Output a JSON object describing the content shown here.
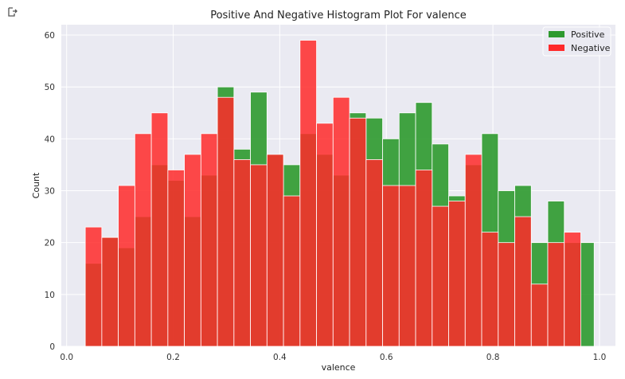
{
  "chart_data": {
    "type": "bar",
    "title": "Positive And Negative Histogram Plot For valence",
    "xlabel": "valence",
    "ylabel": "Count",
    "xlim": [
      -0.01,
      1.03
    ],
    "ylim": [
      0,
      62
    ],
    "xticks": [
      "0.0",
      "0.2",
      "0.4",
      "0.6",
      "0.8",
      "1.0"
    ],
    "yticks": [
      "0",
      "10",
      "20",
      "30",
      "40",
      "50",
      "60"
    ],
    "grid": true,
    "legend_position": "top-right",
    "series": [
      {
        "name": "Positive",
        "color": "#2e9a2e",
        "bins": [
          {
            "x0": 0.035,
            "x1": 0.066,
            "count": 16
          },
          {
            "x0": 0.066,
            "x1": 0.097,
            "count": 21
          },
          {
            "x0": 0.097,
            "x1": 0.128,
            "count": 19
          },
          {
            "x0": 0.128,
            "x1": 0.159,
            "count": 25
          },
          {
            "x0": 0.159,
            "x1": 0.19,
            "count": 35
          },
          {
            "x0": 0.19,
            "x1": 0.221,
            "count": 32
          },
          {
            "x0": 0.221,
            "x1": 0.252,
            "count": 25
          },
          {
            "x0": 0.252,
            "x1": 0.283,
            "count": 33
          },
          {
            "x0": 0.283,
            "x1": 0.314,
            "count": 50
          },
          {
            "x0": 0.314,
            "x1": 0.345,
            "count": 38
          },
          {
            "x0": 0.345,
            "x1": 0.376,
            "count": 49
          },
          {
            "x0": 0.376,
            "x1": 0.407,
            "count": 37
          },
          {
            "x0": 0.407,
            "x1": 0.438,
            "count": 35
          },
          {
            "x0": 0.438,
            "x1": 0.469,
            "count": 41
          },
          {
            "x0": 0.469,
            "x1": 0.5,
            "count": 37
          },
          {
            "x0": 0.5,
            "x1": 0.531,
            "count": 33
          },
          {
            "x0": 0.531,
            "x1": 0.562,
            "count": 45
          },
          {
            "x0": 0.562,
            "x1": 0.593,
            "count": 44
          },
          {
            "x0": 0.593,
            "x1": 0.624,
            "count": 40
          },
          {
            "x0": 0.624,
            "x1": 0.655,
            "count": 45
          },
          {
            "x0": 0.655,
            "x1": 0.686,
            "count": 47
          },
          {
            "x0": 0.686,
            "x1": 0.717,
            "count": 39
          },
          {
            "x0": 0.717,
            "x1": 0.748,
            "count": 29
          },
          {
            "x0": 0.748,
            "x1": 0.779,
            "count": 35
          },
          {
            "x0": 0.779,
            "x1": 0.81,
            "count": 41
          },
          {
            "x0": 0.81,
            "x1": 0.841,
            "count": 30
          },
          {
            "x0": 0.841,
            "x1": 0.872,
            "count": 31
          },
          {
            "x0": 0.872,
            "x1": 0.903,
            "count": 20
          },
          {
            "x0": 0.903,
            "x1": 0.934,
            "count": 28
          },
          {
            "x0": 0.934,
            "x1": 0.99,
            "count": 20
          }
        ]
      },
      {
        "name": "Negative",
        "color": "#ff2a2a",
        "bins": [
          {
            "x0": 0.035,
            "x1": 0.066,
            "count": 23
          },
          {
            "x0": 0.066,
            "x1": 0.097,
            "count": 21
          },
          {
            "x0": 0.097,
            "x1": 0.128,
            "count": 31
          },
          {
            "x0": 0.128,
            "x1": 0.159,
            "count": 41
          },
          {
            "x0": 0.159,
            "x1": 0.19,
            "count": 45
          },
          {
            "x0": 0.19,
            "x1": 0.221,
            "count": 34
          },
          {
            "x0": 0.221,
            "x1": 0.252,
            "count": 37
          },
          {
            "x0": 0.252,
            "x1": 0.283,
            "count": 41
          },
          {
            "x0": 0.283,
            "x1": 0.314,
            "count": 48
          },
          {
            "x0": 0.314,
            "x1": 0.345,
            "count": 36
          },
          {
            "x0": 0.345,
            "x1": 0.376,
            "count": 35
          },
          {
            "x0": 0.376,
            "x1": 0.407,
            "count": 37
          },
          {
            "x0": 0.407,
            "x1": 0.438,
            "count": 29
          },
          {
            "x0": 0.438,
            "x1": 0.469,
            "count": 59
          },
          {
            "x0": 0.469,
            "x1": 0.5,
            "count": 43
          },
          {
            "x0": 0.5,
            "x1": 0.531,
            "count": 48
          },
          {
            "x0": 0.531,
            "x1": 0.562,
            "count": 44
          },
          {
            "x0": 0.562,
            "x1": 0.593,
            "count": 36
          },
          {
            "x0": 0.593,
            "x1": 0.624,
            "count": 31
          },
          {
            "x0": 0.624,
            "x1": 0.655,
            "count": 31
          },
          {
            "x0": 0.655,
            "x1": 0.686,
            "count": 34
          },
          {
            "x0": 0.686,
            "x1": 0.717,
            "count": 27
          },
          {
            "x0": 0.717,
            "x1": 0.748,
            "count": 28
          },
          {
            "x0": 0.748,
            "x1": 0.779,
            "count": 37
          },
          {
            "x0": 0.779,
            "x1": 0.81,
            "count": 22
          },
          {
            "x0": 0.81,
            "x1": 0.841,
            "count": 20
          },
          {
            "x0": 0.841,
            "x1": 0.872,
            "count": 25
          },
          {
            "x0": 0.872,
            "x1": 0.903,
            "count": 12
          },
          {
            "x0": 0.903,
            "x1": 0.934,
            "count": 20
          },
          {
            "x0": 0.934,
            "x1": 0.965,
            "count": 22
          }
        ]
      }
    ]
  }
}
